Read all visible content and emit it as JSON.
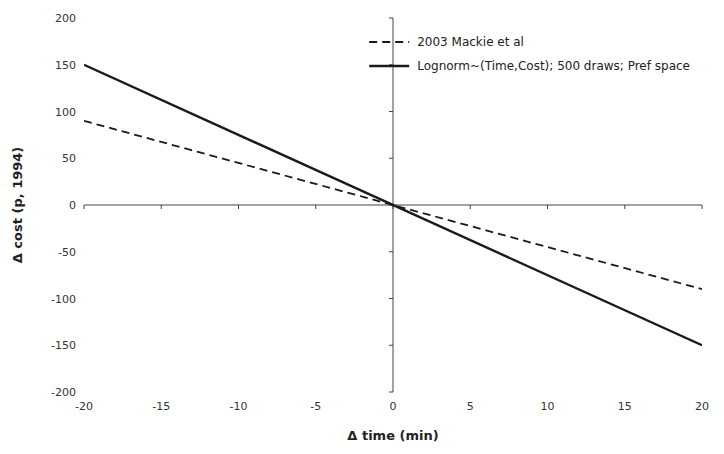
{
  "chart_data": {
    "type": "line",
    "x_label": "Δ time (min)",
    "y_label": "Δ cost (p, 1994)",
    "x": [
      -20,
      20
    ],
    "series": [
      {
        "name": "2003 Mackie et al",
        "color": "#1a1a1a",
        "line_style": "dashed",
        "values": [
          90,
          -90
        ]
      },
      {
        "name": "Lognorm~(Time,Cost); 500 draws; Pref space",
        "color": "#1a1a1a",
        "line_style": "solid",
        "values": [
          150,
          -150
        ]
      }
    ],
    "xlim": [
      -20,
      20
    ],
    "ylim": [
      -200,
      200
    ],
    "xticks": [
      -20,
      -15,
      -10,
      -5,
      0,
      5,
      10,
      15,
      20
    ],
    "yticks": [
      -200,
      -150,
      -100,
      -50,
      0,
      50,
      100,
      150,
      200
    ],
    "grid": false,
    "legend": "upper right"
  }
}
